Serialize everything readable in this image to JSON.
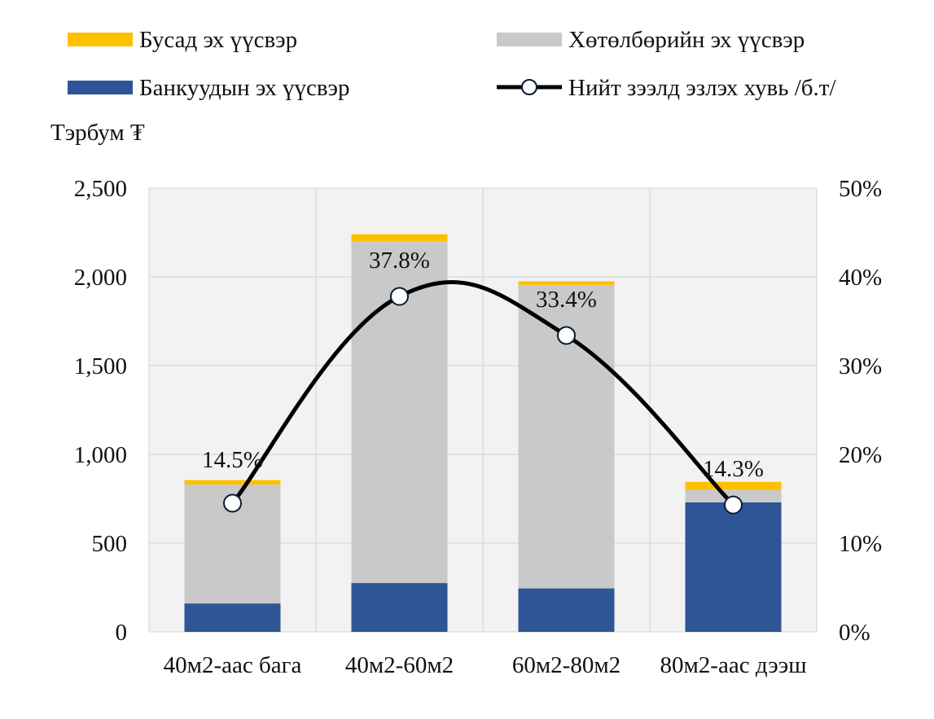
{
  "chart_data": {
    "type": "bar",
    "stacked": true,
    "unit_label": "Тэрбум ₮",
    "categories": [
      "40м2-аас бага",
      "40м2-60м2",
      "60м2-80м2",
      "80м2-аас дээш"
    ],
    "series": [
      {
        "name": "Банкуудын эх үүсвэр",
        "type": "bar",
        "axis": "left",
        "color": "#2F5597",
        "values": [
          160,
          275,
          245,
          730
        ]
      },
      {
        "name": "Хөтөлбөрийн эх үүсвэр",
        "type": "bar",
        "axis": "left",
        "color": "#C9C9C9",
        "values": [
          670,
          1925,
          1710,
          70
        ]
      },
      {
        "name": "Бусад эх үүсвэр",
        "type": "bar",
        "axis": "left",
        "color": "#FFC000",
        "values": [
          25,
          40,
          20,
          45
        ]
      },
      {
        "name": "Нийт зээлд эзлэх хувь /б.т/",
        "type": "line",
        "axis": "right",
        "color": "#000000",
        "values": [
          14.5,
          37.8,
          33.4,
          14.3
        ]
      }
    ],
    "data_labels": [
      "14.5%",
      "37.8%",
      "33.4%",
      "14.3%"
    ],
    "y_left": {
      "min": 0,
      "max": 2500,
      "ticks": [
        0,
        500,
        1000,
        1500,
        2000,
        2500
      ],
      "tick_labels": [
        "0",
        "500",
        "1,000",
        "1,500",
        "2,000",
        "2,500"
      ]
    },
    "y_right": {
      "min": 0,
      "max": 50,
      "ticks": [
        0,
        10,
        20,
        30,
        40,
        50
      ],
      "tick_labels": [
        "0%",
        "10%",
        "20%",
        "30%",
        "40%",
        "50%"
      ]
    },
    "legend": {
      "placement": "top",
      "items": [
        {
          "label": "Бусад эх үүсвэр",
          "kind": "bar",
          "color": "#FFC000"
        },
        {
          "label": "Хөтөлбөрийн эх үүсвэр",
          "kind": "bar",
          "color": "#C9C9C9"
        },
        {
          "label": "Банкуудын эх үүсвэр",
          "kind": "bar",
          "color": "#2F5597"
        },
        {
          "label": "Нийт зээлд эзлэх хувь /б.т/",
          "kind": "line-marker",
          "color": "#000000"
        }
      ]
    },
    "grid": true,
    "plot_background": "#F2F2F2",
    "grid_color": "#D9D9D9"
  }
}
